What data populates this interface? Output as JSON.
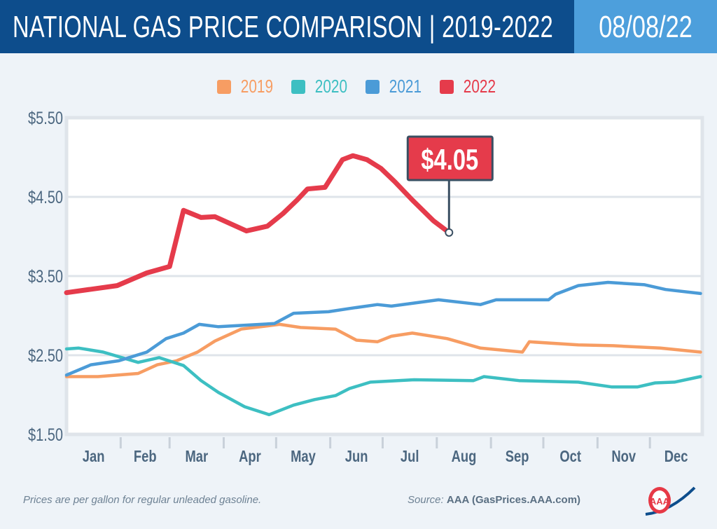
{
  "header": {
    "title": "NATIONAL GAS PRICE COMPARISON | 2019-2022",
    "date": "08/08/22"
  },
  "footer": {
    "note": "Prices are per gallon for regular unleaded gasoline.",
    "source_prefix": "Source:",
    "source": "AAA (GasPrices.AAA.com)",
    "logo_text": "AAA"
  },
  "colors": {
    "header_bg": "#0d4d8c",
    "date_bg": "#4d9fdc",
    "2019": "#f79d63",
    "2020": "#3dbfc2",
    "2021": "#4b9bd7",
    "2022": "#e53b4b"
  },
  "chart_data": {
    "type": "line",
    "title": "NATIONAL GAS PRICE COMPARISON | 2019-2022",
    "xlabel": "",
    "ylabel": "",
    "ylim": [
      1.5,
      5.5
    ],
    "y_ticks": [
      "$5.50",
      "$4.50",
      "$3.50",
      "$2.50",
      "$1.50"
    ],
    "y_tick_values": [
      5.5,
      4.5,
      3.5,
      2.5,
      1.5
    ],
    "x_ticks": [
      "Jan",
      "Feb",
      "Mar",
      "Apr",
      "May",
      "Jun",
      "Jul",
      "Aug",
      "Sep",
      "Oct",
      "Nov",
      "Dec"
    ],
    "grid": "horizontal",
    "legend": "top-center",
    "annotation": {
      "label": "$4.05",
      "date": "08-08",
      "value": 4.05,
      "series": "2022"
    },
    "series": [
      {
        "name": "2019",
        "points": [
          [
            "01-01",
            2.23
          ],
          [
            "01-19",
            2.23
          ],
          [
            "02-11",
            2.27
          ],
          [
            "02-22",
            2.38
          ],
          [
            "03-05",
            2.43
          ],
          [
            "03-17",
            2.54
          ],
          [
            "03-27",
            2.68
          ],
          [
            "04-11",
            2.83
          ],
          [
            "05-03",
            2.89
          ],
          [
            "05-15",
            2.85
          ],
          [
            "06-04",
            2.83
          ],
          [
            "06-16",
            2.69
          ],
          [
            "06-28",
            2.67
          ],
          [
            "07-06",
            2.74
          ],
          [
            "07-18",
            2.78
          ],
          [
            "08-07",
            2.71
          ],
          [
            "08-26",
            2.59
          ],
          [
            "09-19",
            2.54
          ],
          [
            "09-23",
            2.67
          ],
          [
            "10-21",
            2.63
          ],
          [
            "11-10",
            2.62
          ],
          [
            "12-07",
            2.59
          ],
          [
            "12-30",
            2.54
          ]
        ]
      },
      {
        "name": "2020",
        "points": [
          [
            "01-01",
            2.58
          ],
          [
            "01-08",
            2.59
          ],
          [
            "01-22",
            2.54
          ],
          [
            "02-11",
            2.41
          ],
          [
            "02-23",
            2.47
          ],
          [
            "03-09",
            2.37
          ],
          [
            "03-19",
            2.18
          ],
          [
            "03-29",
            2.03
          ],
          [
            "04-13",
            1.85
          ],
          [
            "04-27",
            1.75
          ],
          [
            "05-11",
            1.87
          ],
          [
            "05-23",
            1.94
          ],
          [
            "06-04",
            1.99
          ],
          [
            "06-12",
            2.08
          ],
          [
            "06-24",
            2.16
          ],
          [
            "07-19",
            2.19
          ],
          [
            "08-22",
            2.18
          ],
          [
            "08-28",
            2.23
          ],
          [
            "09-17",
            2.18
          ],
          [
            "10-21",
            2.16
          ],
          [
            "11-09",
            2.1
          ],
          [
            "11-24",
            2.1
          ],
          [
            "12-04",
            2.15
          ],
          [
            "12-15",
            2.16
          ],
          [
            "12-30",
            2.23
          ]
        ]
      },
      {
        "name": "2021",
        "points": [
          [
            "01-01",
            2.25
          ],
          [
            "01-15",
            2.38
          ],
          [
            "01-31",
            2.43
          ],
          [
            "02-16",
            2.54
          ],
          [
            "02-27",
            2.71
          ],
          [
            "03-09",
            2.78
          ],
          [
            "03-18",
            2.89
          ],
          [
            "03-29",
            2.86
          ],
          [
            "04-30",
            2.9
          ],
          [
            "05-11",
            3.03
          ],
          [
            "05-31",
            3.05
          ],
          [
            "06-12",
            3.09
          ],
          [
            "06-28",
            3.14
          ],
          [
            "07-06",
            3.12
          ],
          [
            "08-02",
            3.2
          ],
          [
            "08-26",
            3.14
          ],
          [
            "09-04",
            3.2
          ],
          [
            "10-04",
            3.2
          ],
          [
            "10-08",
            3.27
          ],
          [
            "10-21",
            3.38
          ],
          [
            "11-07",
            3.42
          ],
          [
            "11-28",
            3.39
          ],
          [
            "12-10",
            3.33
          ],
          [
            "12-30",
            3.28
          ]
        ]
      },
      {
        "name": "2022",
        "points": [
          [
            "01-01",
            3.29
          ],
          [
            "01-30",
            3.38
          ],
          [
            "02-16",
            3.54
          ],
          [
            "03-01",
            3.62
          ],
          [
            "03-09",
            4.33
          ],
          [
            "03-19",
            4.24
          ],
          [
            "03-27",
            4.25
          ],
          [
            "04-14",
            4.07
          ],
          [
            "04-26",
            4.13
          ],
          [
            "05-05",
            4.29
          ],
          [
            "05-13",
            4.46
          ],
          [
            "05-19",
            4.6
          ],
          [
            "05-29",
            4.62
          ],
          [
            "06-08",
            4.97
          ],
          [
            "06-14",
            5.02
          ],
          [
            "06-22",
            4.97
          ],
          [
            "06-30",
            4.86
          ],
          [
            "07-08",
            4.69
          ],
          [
            "07-18",
            4.46
          ],
          [
            "07-30",
            4.2
          ],
          [
            "08-08",
            4.05
          ]
        ]
      }
    ]
  }
}
